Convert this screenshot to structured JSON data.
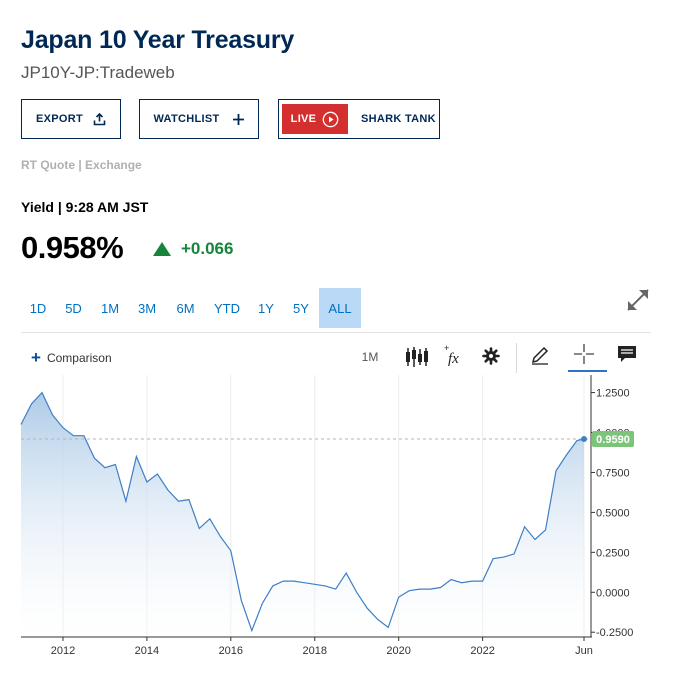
{
  "header": {
    "title": "Japan 10 Year Treasury",
    "subtitle": "JP10Y-JP:Tradeweb"
  },
  "actions": {
    "export_label": "EXPORT",
    "watchlist_label": "WATCHLIST",
    "live_label": "LIVE",
    "shark_tank_label": "SHARK TANK"
  },
  "quote": {
    "source_label": "RT Quote | Exchange",
    "yield_time": "Yield | 9:28 AM JST",
    "last": "0.958%",
    "change": "+0.066",
    "change_color": "#15853b",
    "direction_icon": "triangle-up-icon"
  },
  "ranges": {
    "items": [
      "1D",
      "5D",
      "1M",
      "3M",
      "6M",
      "YTD",
      "1Y",
      "5Y",
      "ALL"
    ],
    "selected": "ALL"
  },
  "toolbar": {
    "comparison_label": "Comparison",
    "interval_label": "1M",
    "icons": [
      "candlestick-icon",
      "function-icon",
      "gear-icon",
      "pencil-icon",
      "crosshair-icon",
      "comment-icon"
    ]
  },
  "colors": {
    "brand": "#002855",
    "link": "#0070c0",
    "active_range_bg": "#bad9f7",
    "live_red": "#d32f2f",
    "line": "#3f7fc6",
    "fill": "#a9c8e6",
    "last_marker": "#7cc47a"
  },
  "chart_data": {
    "type": "area",
    "x": [
      "2011-01",
      "2011-04",
      "2011-07",
      "2011-10",
      "2012-01",
      "2012-04",
      "2012-07",
      "2012-10",
      "2013-01",
      "2013-04",
      "2013-07",
      "2013-10",
      "2014-01",
      "2014-04",
      "2014-07",
      "2014-10",
      "2015-01",
      "2015-04",
      "2015-07",
      "2015-10",
      "2016-01",
      "2016-04",
      "2016-07",
      "2016-10",
      "2017-01",
      "2017-04",
      "2017-07",
      "2017-10",
      "2018-01",
      "2018-04",
      "2018-07",
      "2018-10",
      "2019-01",
      "2019-04",
      "2019-07",
      "2019-10",
      "2020-01",
      "2020-04",
      "2020-07",
      "2020-10",
      "2021-01",
      "2021-04",
      "2021-07",
      "2021-10",
      "2022-01",
      "2022-04",
      "2022-07",
      "2022-10",
      "2023-01",
      "2023-04",
      "2023-07",
      "2023-10",
      "2024-01",
      "2024-04",
      "2024-06"
    ],
    "values": [
      1.05,
      1.18,
      1.25,
      1.11,
      1.03,
      0.98,
      0.98,
      0.84,
      0.78,
      0.8,
      0.57,
      0.85,
      0.69,
      0.74,
      0.64,
      0.57,
      0.58,
      0.4,
      0.46,
      0.35,
      0.26,
      -0.05,
      -0.24,
      -0.07,
      0.04,
      0.07,
      0.07,
      0.06,
      0.05,
      0.04,
      0.02,
      0.12,
      0.0,
      -0.1,
      -0.17,
      -0.22,
      -0.03,
      0.01,
      0.02,
      0.02,
      0.03,
      0.08,
      0.06,
      0.07,
      0.07,
      0.21,
      0.22,
      0.24,
      0.41,
      0.33,
      0.39,
      0.76,
      0.86,
      0.95,
      0.959
    ],
    "last_value_label": "0.9590",
    "reference_value": 0.959,
    "x_tick_labels": [
      "2012",
      "2014",
      "2016",
      "2018",
      "2020",
      "2022",
      "Jun"
    ],
    "x_tick_values": [
      "2012-01",
      "2014-01",
      "2016-01",
      "2018-01",
      "2020-01",
      "2022-01",
      "2024-06"
    ],
    "y_ticks": [
      1.25,
      1.0,
      0.75,
      0.5,
      0.25,
      0.0,
      -0.25
    ],
    "y_tick_labels": [
      "1.2500",
      "1.0000",
      "0.7500",
      "0.5000",
      "0.2500",
      "0.0000",
      "-0.2500"
    ],
    "ylim": [
      -0.28,
      1.36
    ],
    "xlim": [
      "2011-01",
      "2024-08"
    ],
    "grid": "vertical",
    "axis_side": "right"
  }
}
